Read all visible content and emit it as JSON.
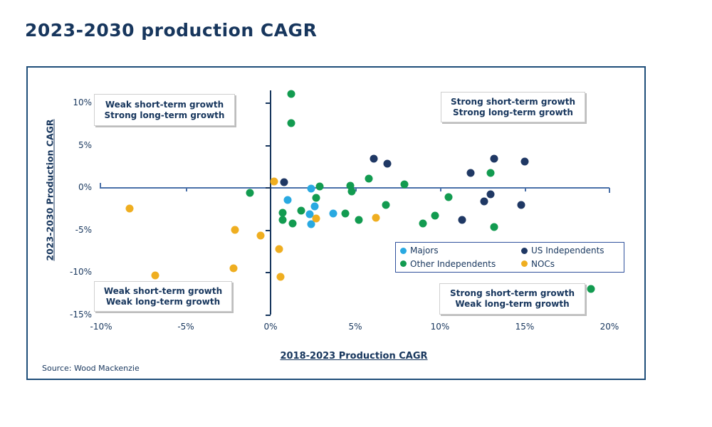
{
  "title": "2023-2030 production CAGR",
  "source": "Source: Wood Mackenzie",
  "colors": {
    "navy_text": "#17365D",
    "majors": "#29A9E1",
    "us_independents": "#1F3864",
    "other_independents": "#129B50",
    "nocs": "#EFAE20",
    "gold_box": "#FFC000",
    "green_box": "#92D050",
    "red_box": "#FF0000",
    "x_axis_line": "#4a70a8",
    "y_axis_line": "#17365D"
  },
  "chart_data": {
    "type": "scatter",
    "title": "2023-2030 production CAGR",
    "xlabel": "2018-2023 Production CAGR",
    "ylabel": "2023-2030 Production CAGR",
    "xlim": [
      -12.5,
      22
    ],
    "ylim": [
      -15.5,
      11.5
    ],
    "grid": false,
    "x_tick_values": [
      -10,
      -5,
      0,
      5,
      10,
      15,
      20
    ],
    "x_tick_labels": [
      "-10%",
      "-5%",
      "0%",
      "5%",
      "10%",
      "15%",
      "20%"
    ],
    "y_tick_values": [
      10,
      5,
      0,
      -5,
      -10,
      -15
    ],
    "y_tick_labels": [
      "10%",
      "5%",
      "0%",
      "-5%",
      "-10%",
      "-15%"
    ],
    "series": [
      {
        "name": "Majors",
        "color": "#29A9E1",
        "points": [
          [
            2.4,
            -0.2
          ],
          [
            1.0,
            -1.5
          ],
          [
            2.6,
            -2.3
          ],
          [
            2.3,
            -3.2
          ],
          [
            2.4,
            -4.4
          ],
          [
            3.7,
            -3.1
          ]
        ]
      },
      {
        "name": "US Independents",
        "color": "#1F3864",
        "points": [
          [
            0.8,
            0.6
          ],
          [
            6.1,
            3.4
          ],
          [
            6.9,
            2.8
          ],
          [
            11.8,
            1.7
          ],
          [
            13.2,
            3.4
          ],
          [
            15.0,
            3.0
          ],
          [
            13.0,
            -0.8
          ],
          [
            12.6,
            -1.7
          ],
          [
            14.8,
            -2.1
          ],
          [
            11.3,
            -3.9
          ]
        ]
      },
      {
        "name": "Other Independents",
        "color": "#129B50",
        "points": [
          [
            1.2,
            11.0
          ],
          [
            1.2,
            7.6
          ],
          [
            -1.2,
            -0.7
          ],
          [
            2.9,
            0.1
          ],
          [
            4.7,
            0.2
          ],
          [
            4.8,
            -0.5
          ],
          [
            5.8,
            1.0
          ],
          [
            7.9,
            0.3
          ],
          [
            13.0,
            1.7
          ],
          [
            2.7,
            -1.3
          ],
          [
            0.7,
            -3.0
          ],
          [
            1.8,
            -2.8
          ],
          [
            0.7,
            -3.9
          ],
          [
            1.3,
            -4.3
          ],
          [
            4.4,
            -3.1
          ],
          [
            5.2,
            -3.9
          ],
          [
            6.8,
            -2.1
          ],
          [
            10.5,
            -1.2
          ],
          [
            9.7,
            -3.4
          ],
          [
            9.0,
            -4.3
          ],
          [
            13.2,
            -4.7
          ],
          [
            18.9,
            -12.0
          ]
        ]
      },
      {
        "name": "NOCs",
        "color": "#EFAE20",
        "points": [
          [
            0.2,
            0.7
          ],
          [
            -8.3,
            -2.5
          ],
          [
            -2.1,
            -5.0
          ],
          [
            -0.6,
            -5.7
          ],
          [
            0.5,
            -7.3
          ],
          [
            -2.2,
            -9.6
          ],
          [
            -6.8,
            -10.4
          ],
          [
            0.6,
            -10.6
          ],
          [
            2.7,
            -3.7
          ],
          [
            6.2,
            -3.6
          ]
        ]
      }
    ],
    "legend": [
      {
        "label": "Majors",
        "color": "#29A9E1"
      },
      {
        "label": "US Independents",
        "color": "#1F3864"
      },
      {
        "label": "Other Independents",
        "color": "#129B50"
      },
      {
        "label": "NOCs",
        "color": "#EFAE20"
      }
    ],
    "legend_position": "inside lower right",
    "quadrants": {
      "top_left": {
        "line1": "Weak short-term growth",
        "line2": "Strong long-term growth",
        "bg": "#FFC000"
      },
      "top_right": {
        "line1": "Strong short-term growth",
        "line2": "Strong long-term growth",
        "bg": "#92D050"
      },
      "bottom_left": {
        "line1": "Weak short-term growth",
        "line2": "Weak long-term growth",
        "bg": "#FF0000"
      },
      "bottom_right": {
        "line1": "Strong short-term growth",
        "line2": "Weak long-term growth",
        "bg": "#FFC000"
      }
    }
  }
}
